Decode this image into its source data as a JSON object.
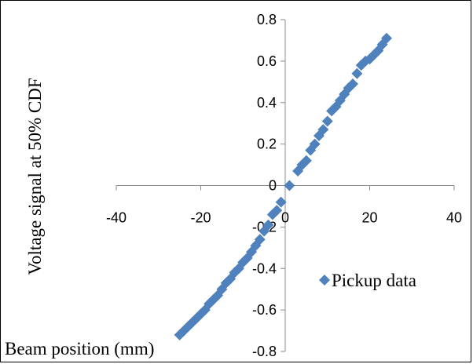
{
  "chart_data": {
    "type": "scatter",
    "title": "",
    "xlabel": "Beam position (mm)",
    "ylabel": "Voltage signal at 50% CDF",
    "xlim": [
      -40,
      40
    ],
    "ylim": [
      -0.8,
      0.8
    ],
    "xticks": [
      -40,
      -20,
      0,
      20,
      40
    ],
    "yticks": [
      -0.8,
      -0.6,
      -0.4,
      -0.2,
      0,
      0.2,
      0.4,
      0.6,
      0.8
    ],
    "x_tick_labels": [
      "-40",
      "-20",
      "0",
      "20",
      "40"
    ],
    "y_tick_labels": [
      "-0.8",
      "-0.6",
      "-0.4",
      "-0.2",
      "0",
      "0.2",
      "0.4",
      "0.6",
      "0.8"
    ],
    "grid": false,
    "legend": {
      "placement": "right",
      "entries": [
        "Pickup data"
      ]
    },
    "series": [
      {
        "name": "Pickup data",
        "color": "#4F81BD",
        "marker": "diamond",
        "points": [
          [
            -25,
            -0.72
          ],
          [
            -24,
            -0.7
          ],
          [
            -23,
            -0.68
          ],
          [
            -22,
            -0.66
          ],
          [
            -21,
            -0.64
          ],
          [
            -20,
            -0.62
          ],
          [
            -19,
            -0.6
          ],
          [
            -18,
            -0.57
          ],
          [
            -17,
            -0.55
          ],
          [
            -16,
            -0.53
          ],
          [
            -15,
            -0.5
          ],
          [
            -14,
            -0.47
          ],
          [
            -13,
            -0.45
          ],
          [
            -12,
            -0.42
          ],
          [
            -11,
            -0.4
          ],
          [
            -10,
            -0.37
          ],
          [
            -9,
            -0.35
          ],
          [
            -8,
            -0.32
          ],
          [
            -7,
            -0.29
          ],
          [
            -6,
            -0.26
          ],
          [
            -5,
            -0.22
          ],
          [
            -4,
            -0.19
          ],
          [
            -3,
            -0.14
          ],
          [
            -2,
            -0.12
          ],
          [
            -1,
            -0.08
          ],
          [
            1,
            0.0
          ],
          [
            3,
            0.07
          ],
          [
            4,
            0.1
          ],
          [
            5,
            0.12
          ],
          [
            6,
            0.17
          ],
          [
            7,
            0.2
          ],
          [
            8,
            0.24
          ],
          [
            9,
            0.27
          ],
          [
            10,
            0.31
          ],
          [
            11,
            0.36
          ],
          [
            12,
            0.38
          ],
          [
            13,
            0.41
          ],
          [
            14,
            0.44
          ],
          [
            15,
            0.47
          ],
          [
            16,
            0.49
          ],
          [
            17,
            0.54
          ],
          [
            18,
            0.58
          ],
          [
            19,
            0.6
          ],
          [
            20,
            0.61
          ],
          [
            21,
            0.63
          ],
          [
            22,
            0.65
          ],
          [
            23,
            0.68
          ],
          [
            24,
            0.71
          ]
        ]
      }
    ]
  }
}
